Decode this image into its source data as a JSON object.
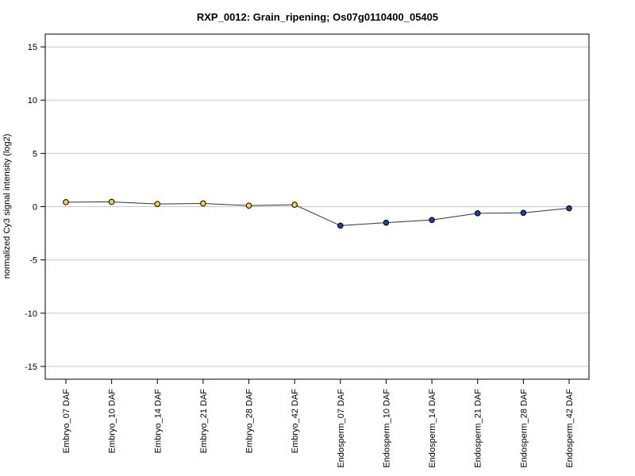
{
  "chart_data": {
    "type": "line",
    "title": "RXP_0012: Grain_ripening; Os07g0110400_05405",
    "xlabel": "",
    "ylabel": "normalized Cy3 signal intensity (log2)",
    "ylim": [
      -16.2,
      16.2
    ],
    "yticks": [
      -15,
      -10,
      -5,
      0,
      5,
      10,
      15
    ],
    "ytick_labels": [
      "-15",
      "-10",
      "-5",
      "0",
      "5",
      "10",
      "15"
    ],
    "grid": true,
    "categories": [
      "Embryo_07 DAF",
      "Embryo_10 DAF",
      "Embryo_14 DAF",
      "Embryo_21 DAF",
      "Embryo_28 DAF",
      "Embryo_42 DAF",
      "Endosperm_07 DAF",
      "Endosperm_10 DAF",
      "Endosperm_14 DAF",
      "Endosperm_21 DAF",
      "Endosperm_28 DAF",
      "Endosperm_42 DAF"
    ],
    "series": [
      {
        "values": [
          0.42,
          0.45,
          0.25,
          0.3,
          0.1,
          0.18,
          -1.78,
          -1.5,
          -1.25,
          -0.62,
          -0.58,
          -0.15
        ],
        "point_colors": [
          "#f2d33c",
          "#f2d33c",
          "#f2d33c",
          "#f2d33c",
          "#f2d33c",
          "#f2d33c",
          "#1f3fa8",
          "#1f3fa8",
          "#1f3fa8",
          "#1f3fa8",
          "#1f3fa8",
          "#1f3fa8"
        ],
        "line_color": "#333333"
      }
    ]
  }
}
